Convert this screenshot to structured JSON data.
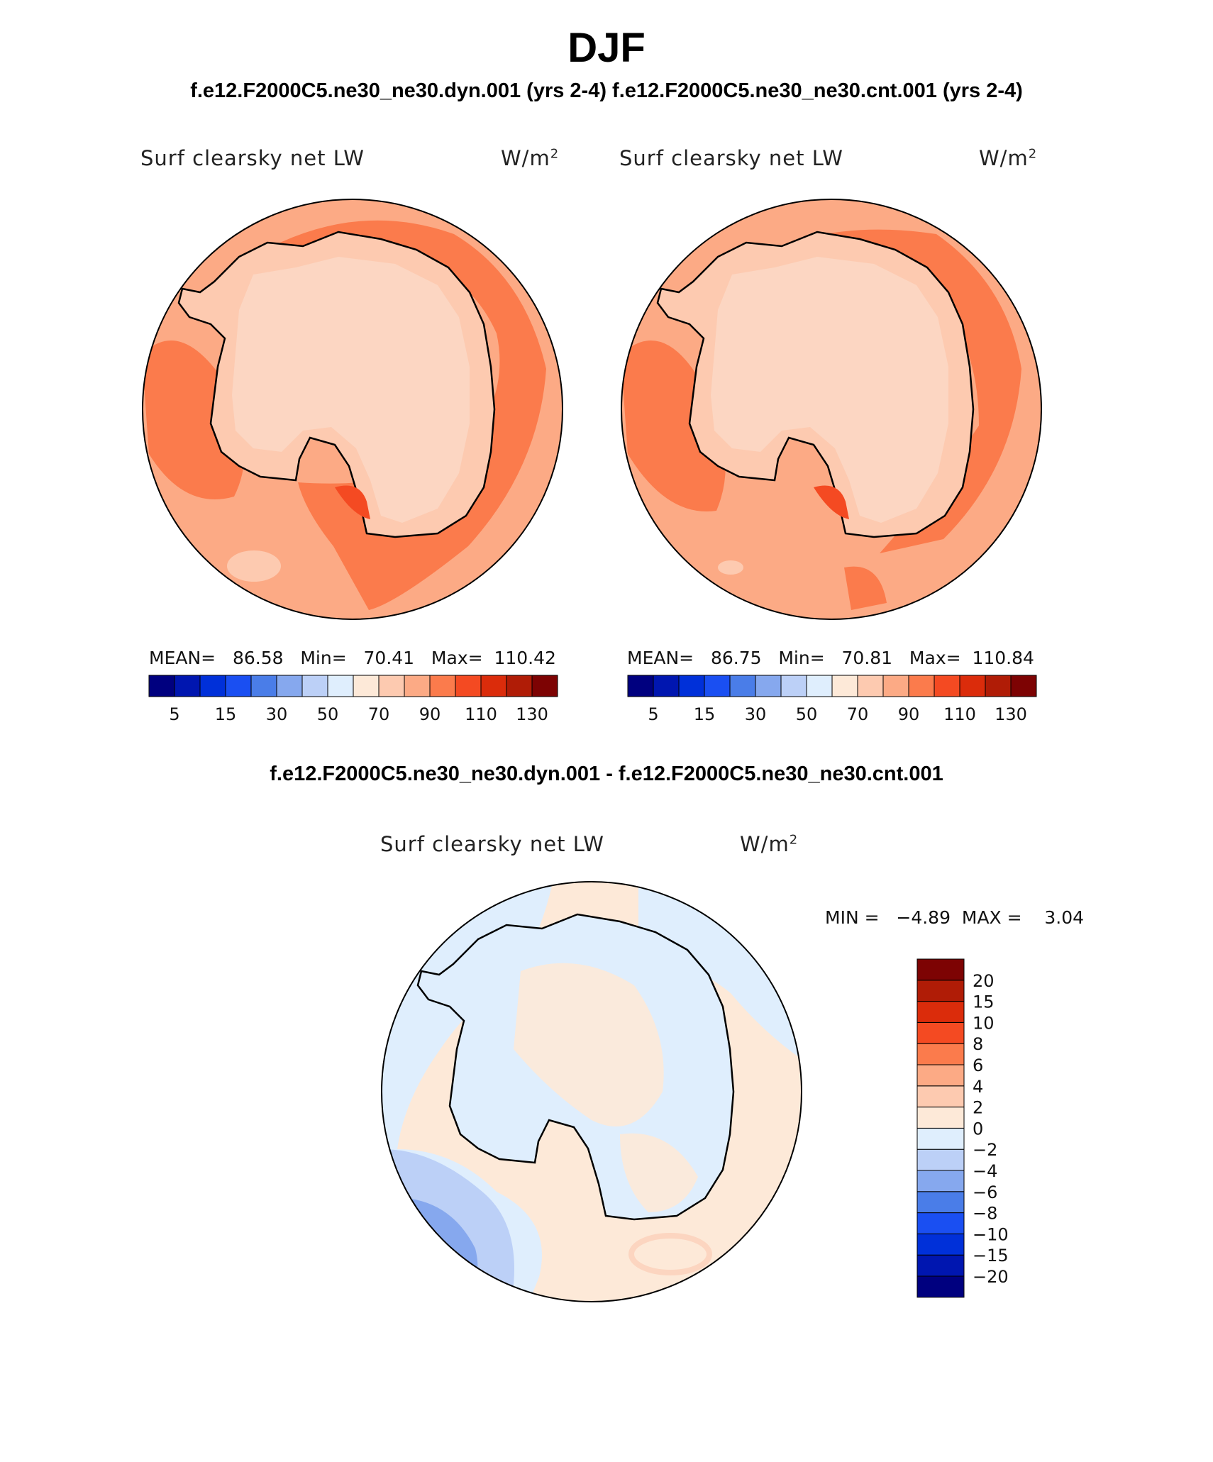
{
  "season_title": "DJF",
  "case_titles": "f.e12.F2000C5.ne30_ne30.dyn.001 (yrs 2-4)  f.e12.F2000C5.ne30_ne30.cnt.001 (yrs 2-4)",
  "diff_title": "f.e12.F2000C5.ne30_ne30.dyn.001 - f.e12.F2000C5.ne30_ne30.cnt.001",
  "panels": [
    {
      "variable": "Surf clearsky net LW",
      "units": "W/m",
      "units_exp": "2",
      "stats": "MEAN=   86.58   Min=   70.41   Max=  110.42"
    },
    {
      "variable": "Surf clearsky net LW",
      "units": "W/m",
      "units_exp": "2",
      "stats": "MEAN=   86.75   Min=   70.81   Max=  110.84"
    }
  ],
  "diff_panel": {
    "variable": "Surf clearsky net LW",
    "units": "W/m",
    "units_exp": "2",
    "stats": "MIN =   −4.89  MAX =    3.04"
  },
  "abs_colorbar": {
    "colors": [
      "#00007f",
      "#0016b0",
      "#0030d9",
      "#1a4ff2",
      "#4a7de8",
      "#86a8ee",
      "#bcd0f7",
      "#dfeefd",
      "#fde9d8",
      "#fdcab0",
      "#fcaa85",
      "#fb7b4c",
      "#f44a22",
      "#db2c0b",
      "#b01c06",
      "#7d0303"
    ],
    "tick_labels": [
      "5",
      "15",
      "30",
      "50",
      "70",
      "90",
      "110",
      "130"
    ]
  },
  "diff_colorbar": {
    "colors_bottom_to_top": [
      "#00007f",
      "#0016b0",
      "#0030d9",
      "#1a4ff2",
      "#4a7de8",
      "#86a8ee",
      "#bcd0f7",
      "#dfeefd",
      "#fde9d8",
      "#fdcab0",
      "#fcaa85",
      "#fb7b4c",
      "#f44a22",
      "#db2c0b",
      "#b01c06",
      "#7d0303"
    ],
    "tick_labels_top_to_bottom": [
      "20",
      "15",
      "10",
      "8",
      "6",
      "4",
      "2",
      "0",
      "−2",
      "−4",
      "−6",
      "−8",
      "−10",
      "−15",
      "−20"
    ]
  },
  "legend": {
    "ocean_mid": "#fcaa85",
    "ocean_band": "#fb7b4c",
    "continent_low": "#fdcab0",
    "hotspot": "#f44a22",
    "diff_pos": "#fde9d8",
    "diff_neg": "#dfeefd",
    "diff_neg2": "#bcd0f7",
    "diff_neg3": "#86a8ee"
  }
}
